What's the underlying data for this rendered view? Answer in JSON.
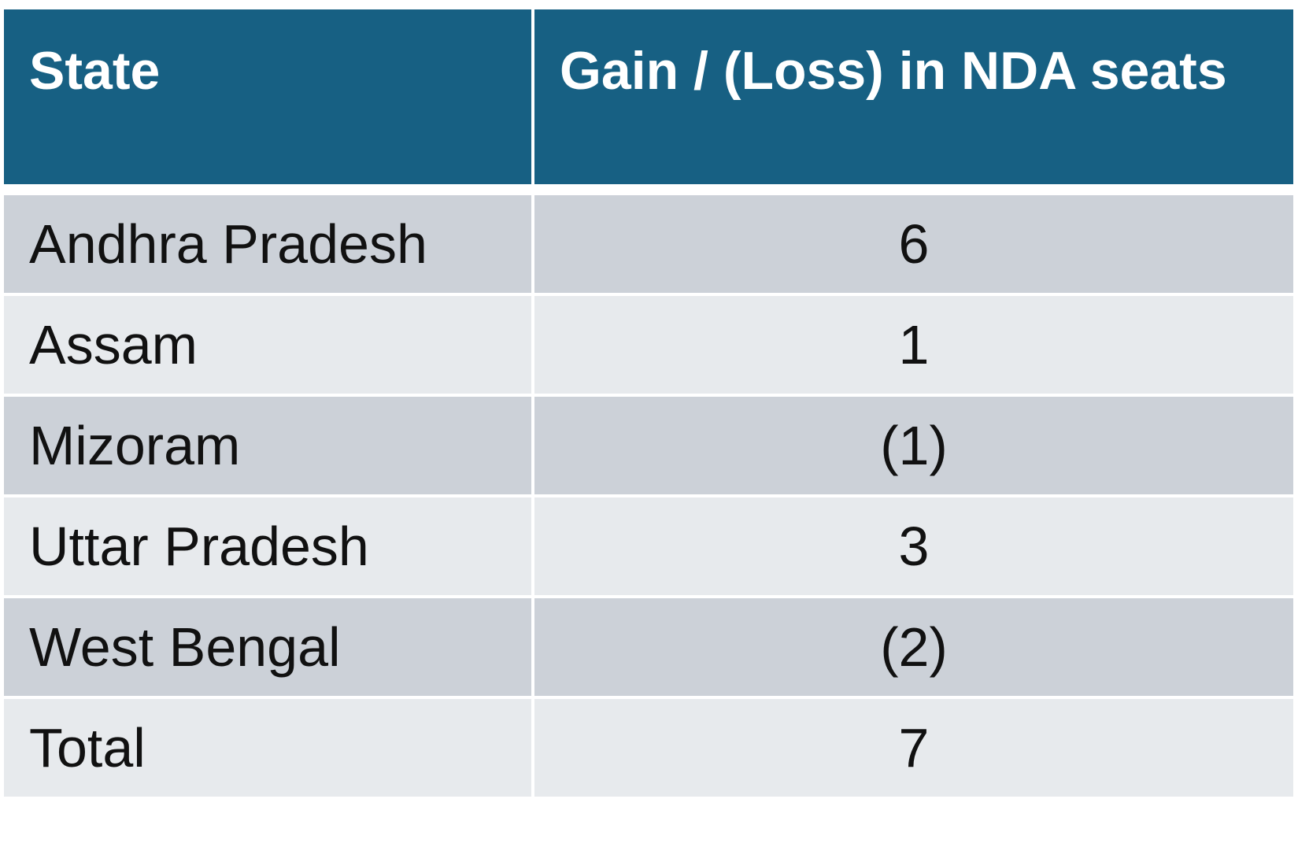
{
  "table": {
    "headers": {
      "state": "State",
      "gain": "Gain / (Loss) in NDA seats"
    },
    "rows": [
      {
        "state": "Andhra Pradesh",
        "gain": "6"
      },
      {
        "state": "Assam",
        "gain": "1"
      },
      {
        "state": "Mizoram",
        "gain": "(1)"
      },
      {
        "state": "Uttar Pradesh",
        "gain": "3"
      },
      {
        "state": "West Bengal",
        "gain": "(2)"
      },
      {
        "state": "Total",
        "gain": "7"
      }
    ]
  },
  "colors": {
    "header_bg": "#176083",
    "header_text": "#ffffff",
    "row_dark": "#ccd1d8",
    "row_light": "#e7eaed",
    "text": "#111111"
  }
}
